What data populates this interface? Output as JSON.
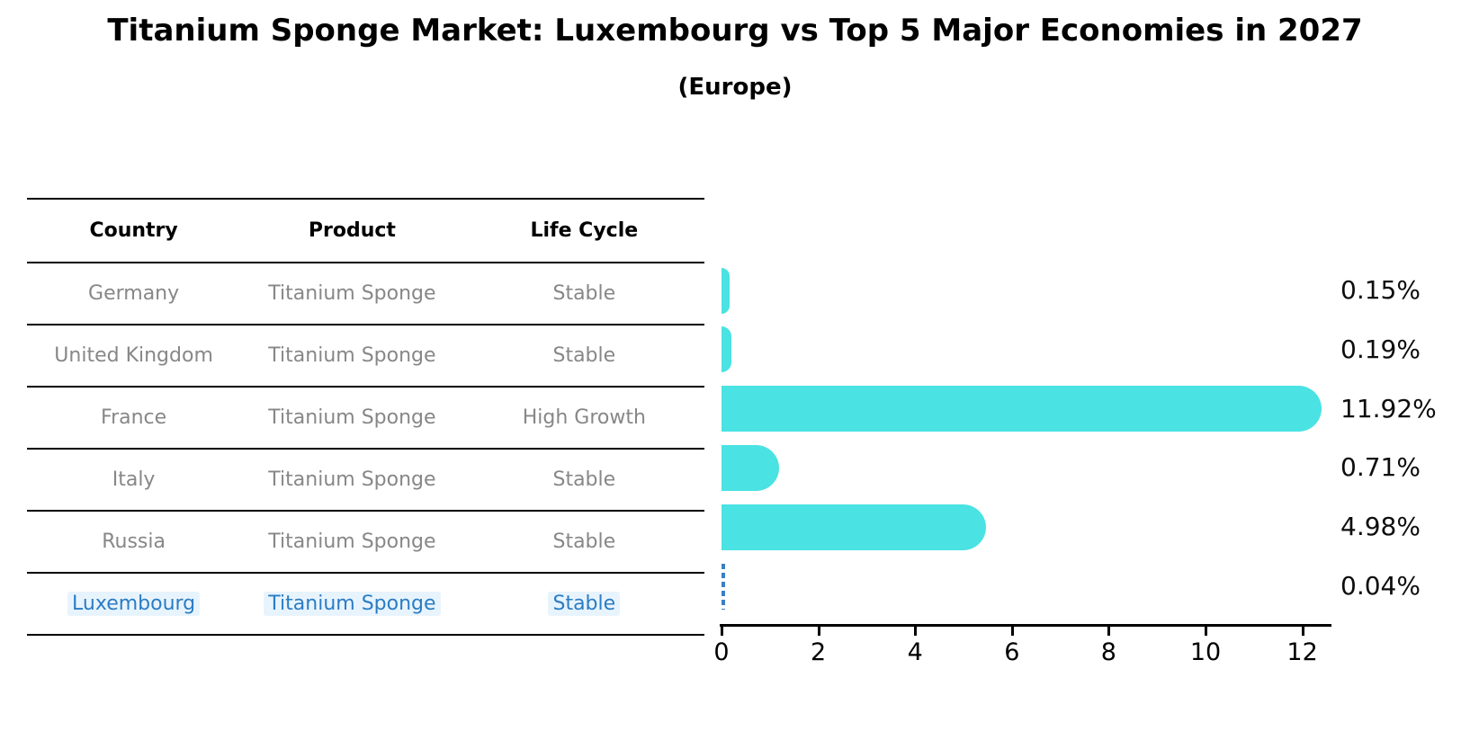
{
  "title": "Titanium Sponge Market: Luxembourg vs Top 5 Major Economies in 2027",
  "subtitle": "(Europe)",
  "table": {
    "headers": [
      "Country",
      "Product",
      "Life Cycle"
    ],
    "rows": [
      {
        "cells": [
          "Germany",
          "Titanium Sponge",
          "Stable"
        ],
        "highlight": false
      },
      {
        "cells": [
          "United Kingdom",
          "Titanium Sponge",
          "Stable"
        ],
        "highlight": false
      },
      {
        "cells": [
          "France",
          "Titanium Sponge",
          "High Growth"
        ],
        "highlight": false
      },
      {
        "cells": [
          "Italy",
          "Titanium Sponge",
          "Stable"
        ],
        "highlight": false
      },
      {
        "cells": [
          "Russia",
          "Titanium Sponge",
          "Stable"
        ],
        "highlight": true
      }
    ],
    "highlight_row": {
      "cells": [
        "Luxembourg",
        "Titanium Sponge",
        "Stable"
      ],
      "highlight": true
    }
  },
  "chart_data": {
    "type": "bar",
    "orientation": "horizontal",
    "title": "Titanium Sponge Market: Luxembourg vs Top 5 Major Economies in 2027 (Europe)",
    "categories": [
      "Germany",
      "United Kingdom",
      "France",
      "Italy",
      "Russia",
      "Luxembourg"
    ],
    "values": [
      0.15,
      0.19,
      11.92,
      0.71,
      4.98,
      0.04
    ],
    "value_labels": [
      "0.15%",
      "0.19%",
      "11.92%",
      "0.71%",
      "4.98%",
      "0.04%"
    ],
    "x_ticks": [
      0,
      2,
      4,
      6,
      8,
      10,
      12
    ],
    "xlim": [
      0,
      12.6
    ],
    "grid": false,
    "legend": false,
    "highlight_index": 5,
    "highlight_style": "dashed-blue-outline"
  },
  "colors": {
    "bar": "#4ae2e2",
    "highlight_blue": "#2b7cc4",
    "row_text": "#878787",
    "header_text": "#000000",
    "axis": "#000000",
    "value_label": "#0d0d0d",
    "background": "#ffffff"
  }
}
